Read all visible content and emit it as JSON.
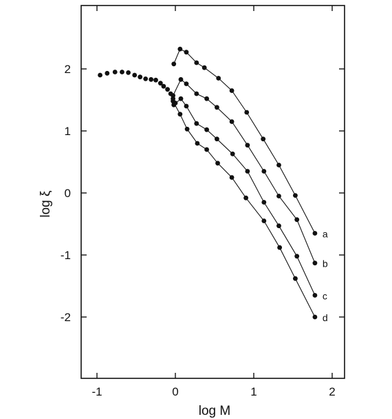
{
  "chart_data": {
    "type": "scatter",
    "title": "",
    "xlabel": "log M",
    "ylabel": "log ξ",
    "xlim": [
      -1.1,
      2.1
    ],
    "ylim": [
      -3.0,
      3.0
    ],
    "xticks": [
      -1,
      0,
      1,
      2
    ],
    "xtick_labels": [
      "-1",
      "0",
      "1",
      "2"
    ],
    "yticks": [
      -2,
      -1,
      0,
      1,
      2
    ],
    "ytick_labels": [
      "-2",
      "-1",
      "0",
      "1",
      "2"
    ],
    "grid": false,
    "legend": "none",
    "series": [
      {
        "label": "",
        "connected": false,
        "x": [
          -0.96,
          -0.87,
          -0.77,
          -0.68,
          -0.6,
          -0.52,
          -0.45,
          -0.38,
          -0.31,
          -0.25,
          -0.19,
          -0.15,
          -0.1,
          -0.06,
          -0.03,
          0.0
        ],
        "y": [
          1.9,
          1.93,
          1.95,
          1.95,
          1.94,
          1.9,
          1.87,
          1.84,
          1.83,
          1.82,
          1.77,
          1.72,
          1.67,
          1.6,
          1.52,
          1.45
        ]
      },
      {
        "label": "a",
        "connected": true,
        "x": [
          -0.02,
          0.06,
          0.14,
          0.27,
          0.37,
          0.55,
          0.72,
          0.91,
          1.12,
          1.32,
          1.53,
          1.78
        ],
        "y": [
          2.08,
          2.32,
          2.27,
          2.1,
          2.02,
          1.85,
          1.65,
          1.3,
          0.87,
          0.45,
          -0.04,
          -0.65
        ]
      },
      {
        "label": "b",
        "connected": true,
        "x": [
          -0.03,
          0.07,
          0.14,
          0.27,
          0.4,
          0.53,
          0.72,
          0.92,
          1.13,
          1.32,
          1.55,
          1.78
        ],
        "y": [
          1.57,
          1.83,
          1.76,
          1.6,
          1.52,
          1.38,
          1.15,
          0.77,
          0.35,
          -0.05,
          -0.43,
          -1.13
        ]
      },
      {
        "label": "c",
        "connected": true,
        "x": [
          -0.02,
          0.07,
          0.14,
          0.27,
          0.4,
          0.53,
          0.73,
          0.92,
          1.13,
          1.32,
          1.55,
          1.78
        ],
        "y": [
          1.42,
          1.52,
          1.4,
          1.12,
          1.02,
          0.87,
          0.63,
          0.35,
          -0.15,
          -0.53,
          -1.02,
          -1.65
        ]
      },
      {
        "label": "d",
        "connected": true,
        "x": [
          -0.03,
          0.06,
          0.15,
          0.28,
          0.4,
          0.54,
          0.72,
          0.9,
          1.13,
          1.33,
          1.53,
          1.78
        ],
        "y": [
          1.48,
          1.27,
          1.03,
          0.8,
          0.7,
          0.48,
          0.25,
          -0.08,
          -0.45,
          -0.88,
          -1.38,
          -2.0
        ]
      }
    ]
  }
}
